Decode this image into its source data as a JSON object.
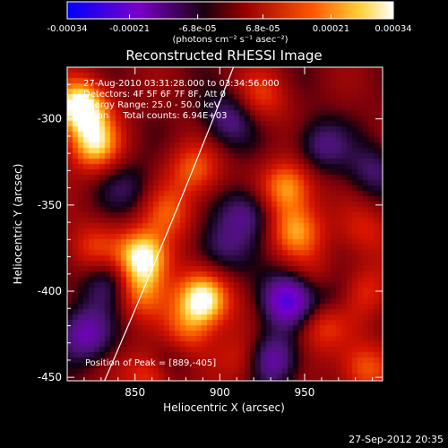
{
  "colorbar": {
    "tick_labels": [
      "-0.00034",
      "-0.00021",
      "-6.8e-05",
      "6.8e-05",
      "0.00021",
      "0.00034"
    ],
    "tick_values": [
      -0.00034,
      -0.00021,
      -6.8e-05,
      6.8e-05,
      0.00021,
      0.00034
    ],
    "range": [
      -0.00034,
      0.00034
    ],
    "units": "(photons cm⁻² s⁻¹ asec⁻²)",
    "colors": [
      "#0000ff",
      "#7a00c8",
      "#111111",
      "#b40000",
      "#ff6a00",
      "#ffffff"
    ]
  },
  "chart_data": {
    "type": "heatmap",
    "title": "Reconstructed RHESSI Image",
    "xlabel": "Heliocentric X (arcsec)",
    "ylabel": "Heliocentric Y (arcsec)",
    "xlim": [
      810,
      996
    ],
    "ylim": [
      -452,
      -270
    ],
    "x_ticks": [
      850,
      900,
      950
    ],
    "y_ticks": [
      -300,
      -350,
      -400,
      -450
    ],
    "annotations": [
      "27-Aug-2010 03:31:28.000 to 03:34:56.000",
      "Detectors: 4F 5F 6F 7F 8F, Att 0",
      "Energy Range: 25.0 - 50.0 keV",
      "Clean     Total counts: 6.94E+03"
    ],
    "peak_label": "Position of Peak = [889,-405]",
    "peak_position": [
      889,
      -405
    ],
    "limb_curve": {
      "x": [
        832,
        908
      ],
      "y": [
        -452,
        -270
      ]
    },
    "blobs": [
      {
        "x": 818,
        "y": -293,
        "v": 0.00034
      },
      {
        "x": 826,
        "y": -315,
        "v": 0.00024
      },
      {
        "x": 855,
        "y": -380,
        "v": 0.00032
      },
      {
        "x": 852,
        "y": -400,
        "v": 0.00018
      },
      {
        "x": 890,
        "y": -405,
        "v": 0.00033
      },
      {
        "x": 880,
        "y": -425,
        "v": 0.00015
      },
      {
        "x": 885,
        "y": -330,
        "v": 0.00016
      },
      {
        "x": 870,
        "y": -355,
        "v": 0.00014
      },
      {
        "x": 940,
        "y": -340,
        "v": 0.00022
      },
      {
        "x": 945,
        "y": -365,
        "v": 0.0002
      },
      {
        "x": 960,
        "y": -395,
        "v": 0.00015
      },
      {
        "x": 985,
        "y": -400,
        "v": 0.00012
      },
      {
        "x": 925,
        "y": -287,
        "v": 0.00012
      },
      {
        "x": 960,
        "y": -420,
        "v": 0.00014
      },
      {
        "x": 985,
        "y": -445,
        "v": 0.00016
      },
      {
        "x": 860,
        "y": -448,
        "v": 0.00018
      },
      {
        "x": 915,
        "y": -440,
        "v": 0.00013
      },
      {
        "x": 905,
        "y": -300,
        "v": -0.00015
      },
      {
        "x": 915,
        "y": -355,
        "v": -0.00016
      },
      {
        "x": 960,
        "y": -315,
        "v": -0.00014
      },
      {
        "x": 940,
        "y": -405,
        "v": -0.00028
      },
      {
        "x": 965,
        "y": -400,
        "v": -0.00018
      },
      {
        "x": 820,
        "y": -425,
        "v": -0.0002
      },
      {
        "x": 835,
        "y": -395,
        "v": -0.00016
      },
      {
        "x": 845,
        "y": -340,
        "v": -0.0001
      },
      {
        "x": 870,
        "y": -440,
        "v": -0.00012
      },
      {
        "x": 900,
        "y": -375,
        "v": -0.00012
      },
      {
        "x": 930,
        "y": -440,
        "v": -0.00022
      },
      {
        "x": 825,
        "y": -375,
        "v": 0.00012
      },
      {
        "x": 990,
        "y": -330,
        "v": -0.00012
      },
      {
        "x": 985,
        "y": -365,
        "v": 0.0001
      }
    ]
  },
  "footer": {
    "timestamp": "27-Sep-2012 20:35"
  }
}
